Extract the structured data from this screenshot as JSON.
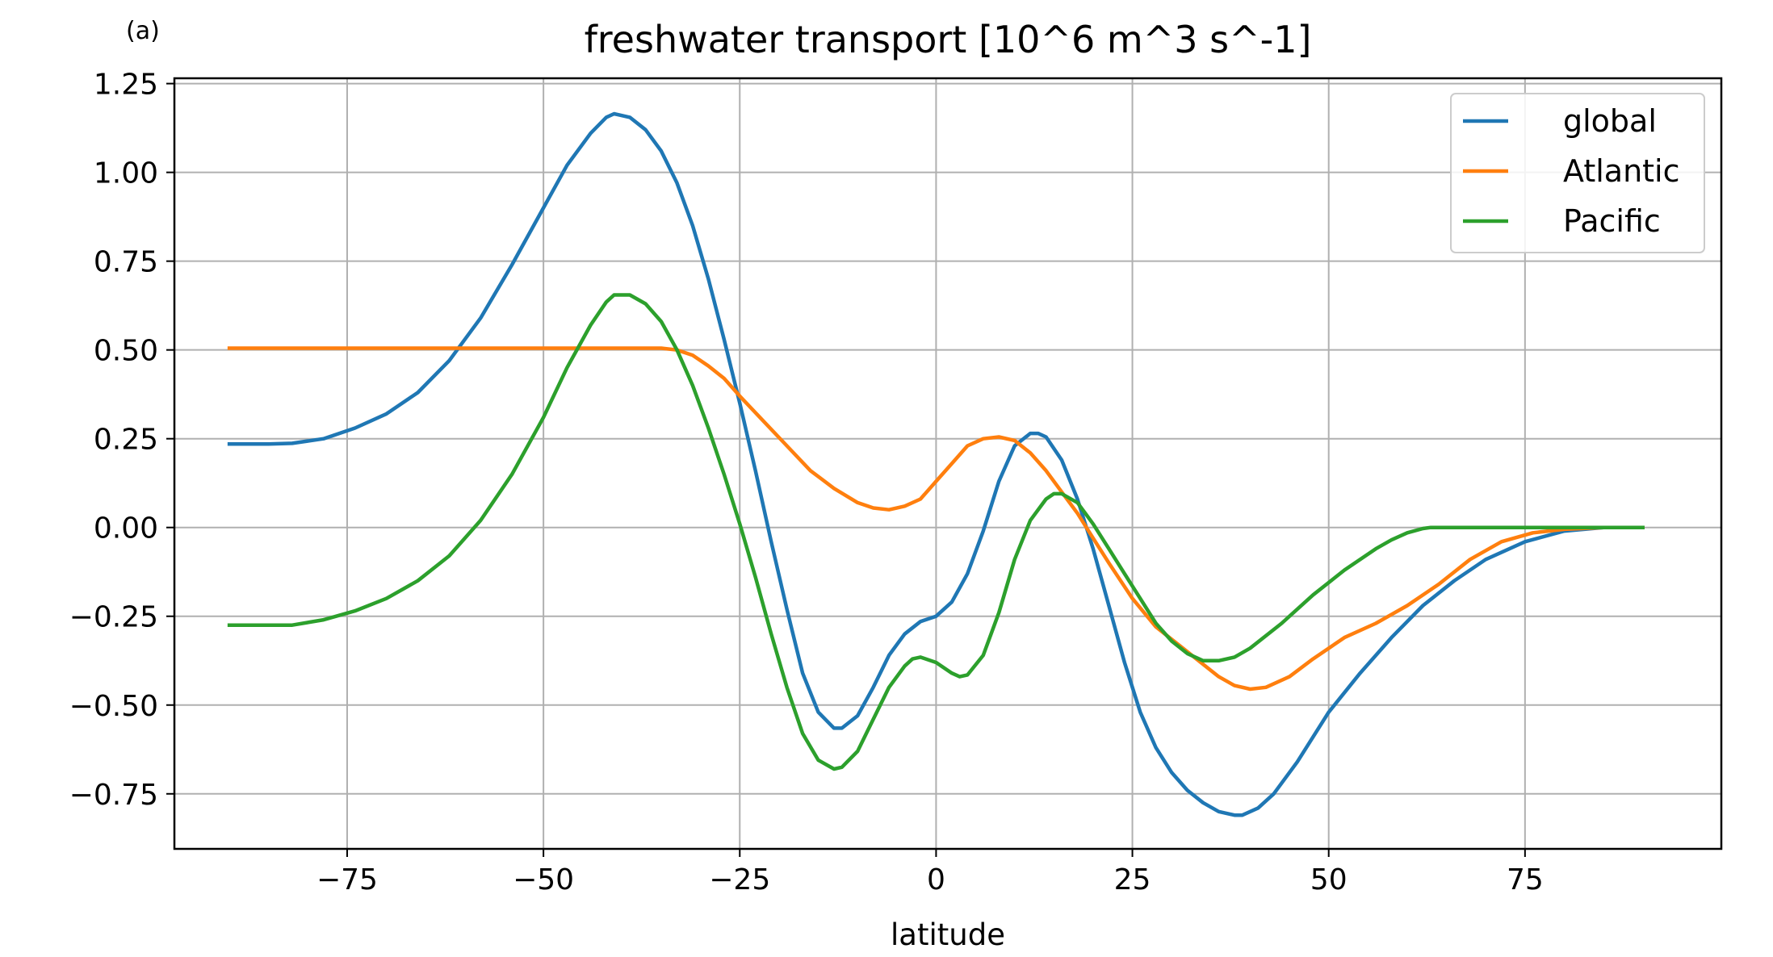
{
  "panel_label": "(a)",
  "chart_data": {
    "type": "line",
    "title": "freshwater transport [10^6 m^3 s^-1]",
    "xlabel": "latitude",
    "ylabel": "",
    "xlim": [
      -97,
      100
    ],
    "ylim": [
      -0.905,
      1.265
    ],
    "xticks": [
      -75,
      -50,
      -25,
      0,
      25,
      50,
      75
    ],
    "xtick_labels": [
      "−75",
      "−50",
      "−25",
      "0",
      "25",
      "50",
      "75"
    ],
    "yticks": [
      1.25,
      1.0,
      0.75,
      0.5,
      0.25,
      0.0,
      -0.25,
      -0.5,
      -0.75
    ],
    "ytick_labels": [
      "1.25",
      "1.00",
      "0.75",
      "0.50",
      "0.25",
      "0.00",
      "−0.25",
      "−0.50",
      "−0.75"
    ],
    "grid": true,
    "legend_position": "top-right",
    "series": [
      {
        "name": "global",
        "color": "#1f77b4",
        "x": [
          -90,
          -85,
          -82,
          -78,
          -74,
          -70,
          -66,
          -62,
          -58,
          -54,
          -50,
          -47,
          -44,
          -42,
          -41,
          -39,
          -37,
          -35,
          -33,
          -31,
          -29,
          -27,
          -25,
          -23,
          -21,
          -19,
          -17,
          -15,
          -13,
          -12,
          -10,
          -8,
          -6,
          -4,
          -2,
          0,
          2,
          4,
          6,
          8,
          10,
          12,
          13,
          14,
          16,
          18,
          20,
          22,
          24,
          26,
          28,
          30,
          32,
          34,
          36,
          38,
          39,
          41,
          43,
          46,
          50,
          54,
          58,
          62,
          66,
          70,
          75,
          80,
          85,
          90
        ],
        "y": [
          0.235,
          0.235,
          0.237,
          0.25,
          0.28,
          0.32,
          0.38,
          0.47,
          0.59,
          0.74,
          0.9,
          1.02,
          1.11,
          1.155,
          1.165,
          1.155,
          1.12,
          1.06,
          0.97,
          0.85,
          0.7,
          0.53,
          0.35,
          0.16,
          -0.04,
          -0.23,
          -0.41,
          -0.52,
          -0.565,
          -0.565,
          -0.53,
          -0.45,
          -0.36,
          -0.3,
          -0.265,
          -0.25,
          -0.21,
          -0.13,
          -0.01,
          0.13,
          0.23,
          0.265,
          0.265,
          0.255,
          0.19,
          0.08,
          -0.06,
          -0.22,
          -0.38,
          -0.52,
          -0.62,
          -0.69,
          -0.74,
          -0.775,
          -0.8,
          -0.81,
          -0.81,
          -0.79,
          -0.75,
          -0.66,
          -0.52,
          -0.41,
          -0.31,
          -0.22,
          -0.15,
          -0.09,
          -0.04,
          -0.01,
          0.0,
          0.0
        ]
      },
      {
        "name": "Atlantic",
        "color": "#ff7f0e",
        "x": [
          -90,
          -80,
          -70,
          -60,
          -50,
          -40,
          -35,
          -33,
          -31,
          -29,
          -27,
          -25,
          -22,
          -19,
          -16,
          -13,
          -10,
          -8,
          -6,
          -4,
          -2,
          0,
          2,
          4,
          6,
          8,
          10,
          12,
          14,
          16,
          18,
          20,
          22,
          25,
          28,
          32,
          36,
          38,
          40,
          42,
          45,
          48,
          52,
          56,
          60,
          64,
          68,
          72,
          76,
          80,
          85,
          90
        ],
        "y": [
          0.505,
          0.505,
          0.505,
          0.505,
          0.505,
          0.505,
          0.505,
          0.5,
          0.485,
          0.455,
          0.42,
          0.37,
          0.3,
          0.23,
          0.16,
          0.11,
          0.07,
          0.055,
          0.05,
          0.06,
          0.08,
          0.13,
          0.18,
          0.23,
          0.25,
          0.255,
          0.245,
          0.21,
          0.16,
          0.1,
          0.04,
          -0.03,
          -0.1,
          -0.2,
          -0.28,
          -0.35,
          -0.42,
          -0.445,
          -0.455,
          -0.45,
          -0.42,
          -0.37,
          -0.31,
          -0.27,
          -0.22,
          -0.16,
          -0.09,
          -0.04,
          -0.015,
          -0.005,
          0.0,
          0.0
        ]
      },
      {
        "name": "Pacific",
        "color": "#2ca02c",
        "x": [
          -90,
          -85,
          -82,
          -78,
          -74,
          -70,
          -66,
          -62,
          -58,
          -54,
          -50,
          -47,
          -44,
          -42,
          -41,
          -39,
          -37,
          -35,
          -33,
          -31,
          -29,
          -27,
          -25,
          -23,
          -21,
          -19,
          -17,
          -15,
          -13,
          -12,
          -10,
          -8,
          -6,
          -4,
          -3,
          -2,
          0,
          2,
          3,
          4,
          6,
          8,
          10,
          12,
          14,
          15,
          16,
          18,
          20,
          22,
          24,
          26,
          28,
          30,
          32,
          34,
          36,
          38,
          40,
          44,
          48,
          52,
          56,
          58,
          60,
          62,
          63,
          70,
          80,
          90
        ],
        "y": [
          -0.275,
          -0.275,
          -0.275,
          -0.26,
          -0.235,
          -0.2,
          -0.15,
          -0.08,
          0.02,
          0.15,
          0.31,
          0.45,
          0.57,
          0.635,
          0.655,
          0.655,
          0.63,
          0.58,
          0.5,
          0.4,
          0.28,
          0.15,
          0.01,
          -0.14,
          -0.3,
          -0.45,
          -0.58,
          -0.655,
          -0.68,
          -0.675,
          -0.63,
          -0.54,
          -0.45,
          -0.39,
          -0.37,
          -0.365,
          -0.38,
          -0.41,
          -0.42,
          -0.415,
          -0.36,
          -0.24,
          -0.09,
          0.02,
          0.08,
          0.095,
          0.095,
          0.07,
          0.01,
          -0.06,
          -0.13,
          -0.2,
          -0.27,
          -0.32,
          -0.355,
          -0.375,
          -0.375,
          -0.365,
          -0.34,
          -0.27,
          -0.19,
          -0.12,
          -0.06,
          -0.035,
          -0.015,
          -0.003,
          0.0,
          0.0,
          0.0,
          0.0
        ]
      }
    ]
  }
}
